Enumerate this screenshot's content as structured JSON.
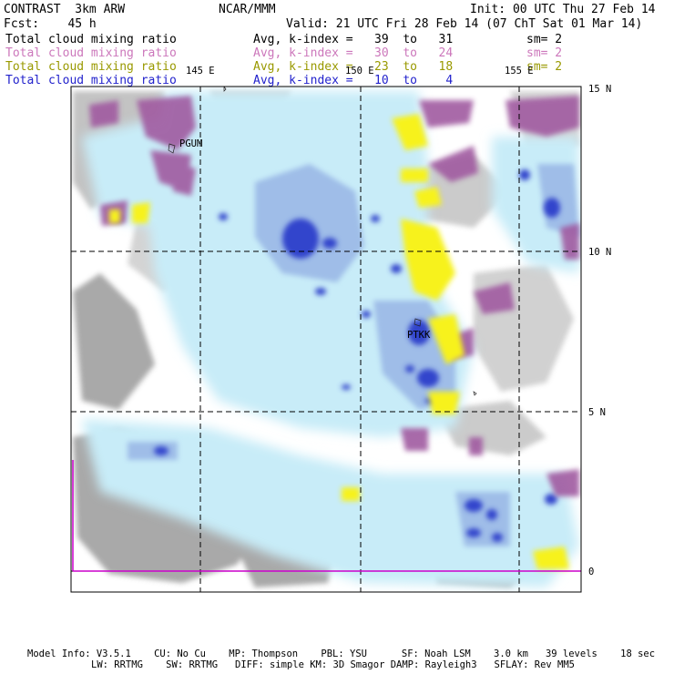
{
  "header": {
    "title": "CONTRAST  3km ARW",
    "center": "NCAR/MMM",
    "init": "Init: 00 UTC Thu 27 Feb 14",
    "fcst": "Fcst:    45 h",
    "valid": "Valid: 21 UTC Fri 28 Feb 14 (07 ChT Sat 01 Mar 14)"
  },
  "fields": [
    {
      "name": "Total cloud mixing ratio",
      "avg": "Avg, k-index =   39  to   31",
      "sm": "sm= 2",
      "color": "#000000"
    },
    {
      "name": "Total cloud mixing ratio",
      "avg": "Avg, k-index =   30  to   24",
      "sm": "sm= 2",
      "color": "#cc77bb"
    },
    {
      "name": "Total cloud mixing ratio",
      "avg": "Avg, k-index =   23  to   18",
      "sm": "sm= 2",
      "color": "#999900"
    },
    {
      "name": "Total cloud mixing ratio",
      "avg": "Avg, k-index =   10  to    4",
      "sm": "",
      "color": "#2222cc"
    }
  ],
  "map": {
    "lon_labels": [
      "145 E",
      "150 E",
      "155 E"
    ],
    "lat_labels": [
      "15 N",
      "10 N",
      "5 N",
      "0"
    ],
    "places": [
      "PGUM",
      "PTKK"
    ],
    "colors": {
      "land": "#ffffff",
      "gray_cloud": "#9a9a9a",
      "light_blue": "#c8ecf8",
      "mid_blue": "#9fbde8",
      "deep_blue": "#3344cc",
      "purple": "#a05aa0",
      "yellow": "#f7f21a",
      "boundary": "#cc00cc"
    }
  },
  "footer": {
    "line1": "Model Info: V3.5.1    CU: No Cu    MP: Thompson    PBL: YSU      SF: Noah LSM    3.0 km   39 levels    18 sec",
    "line2": "LW: RRTMG    SW: RRTMG   DIFF: simple KM: 3D Smagor DAMP: Rayleigh3   SFLAY: Rev MM5"
  }
}
